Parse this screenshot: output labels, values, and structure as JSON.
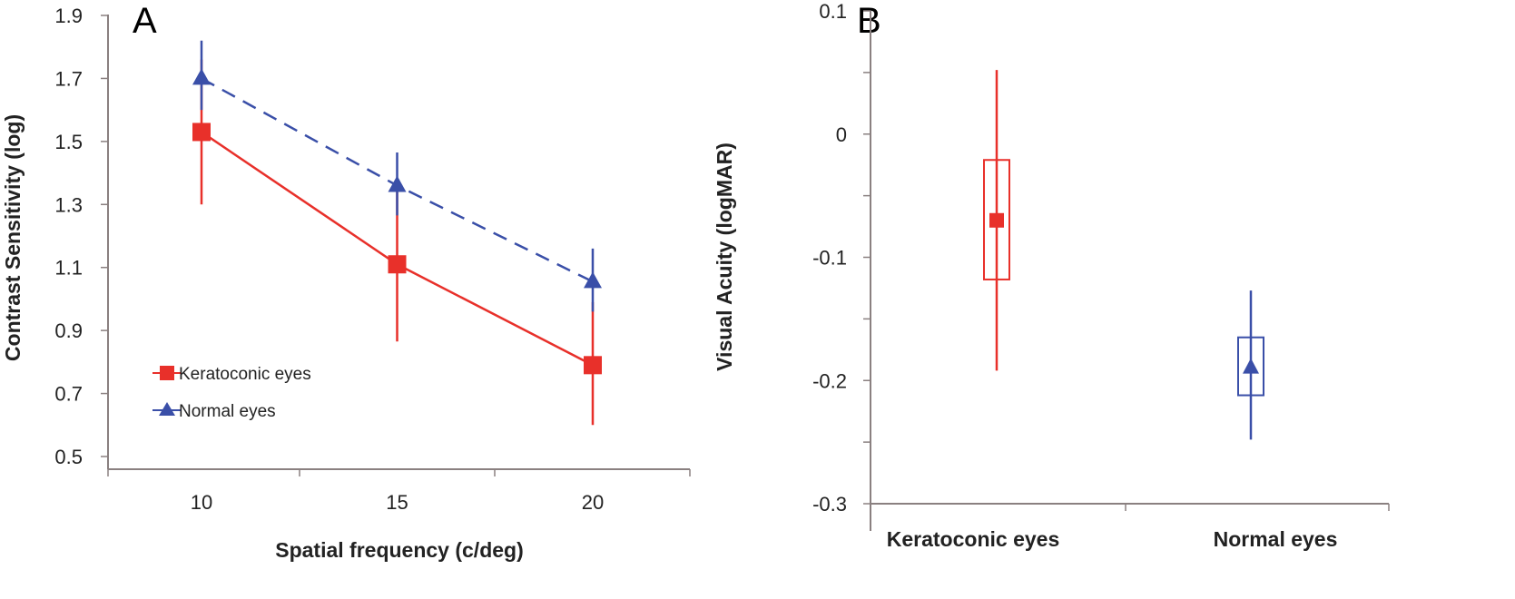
{
  "chart_data": [
    {
      "type": "line",
      "panel_label": "A",
      "xlabel": "Spatial frequency (c/deg)",
      "ylabel": "Contrast Sensitivity (log)",
      "x": [
        10,
        15,
        20
      ],
      "xticks": [
        "10",
        "15",
        "20"
      ],
      "ylim": [
        0.5,
        1.9
      ],
      "yticks": [
        "0.5",
        "0.7",
        "0.9",
        "1.1",
        "1.3",
        "1.5",
        "1.7",
        "1.9"
      ],
      "legend_position": "bottom-left",
      "series": [
        {
          "name": "Keratoconic eyes",
          "color": "#e8302a",
          "marker": "square",
          "dash": false,
          "values": [
            1.53,
            1.11,
            0.79
          ],
          "err_low": [
            1.3,
            0.865,
            0.6
          ],
          "err_high": [
            1.76,
            1.36,
            0.99
          ]
        },
        {
          "name": "Normal eyes",
          "color": "#3a4fa8",
          "marker": "triangle",
          "dash": true,
          "values": [
            1.7,
            1.36,
            1.055
          ],
          "err_low": [
            1.6,
            1.265,
            0.96
          ],
          "err_high": [
            1.82,
            1.465,
            1.16
          ]
        }
      ]
    },
    {
      "type": "box",
      "panel_label": "B",
      "xlabel": "",
      "ylabel": "Visual Acuity (logMAR)",
      "categories": [
        "Keratoconic eyes",
        "Normal eyes"
      ],
      "ylim": [
        -0.3,
        0.1
      ],
      "yticks": [
        "-0.3",
        "-0.2",
        "-0.1",
        "0",
        "0.1"
      ],
      "series": [
        {
          "name": "Keratoconic eyes",
          "color": "#e8302a",
          "marker": "square",
          "mean": -0.07,
          "box_low": -0.118,
          "box_high": -0.021,
          "whisker_low": -0.192,
          "whisker_high": 0.052
        },
        {
          "name": "Normal eyes",
          "color": "#3a4fa8",
          "marker": "triangle",
          "mean": -0.19,
          "box_low": -0.212,
          "box_high": -0.165,
          "whisker_low": -0.248,
          "whisker_high": -0.127
        }
      ]
    }
  ]
}
